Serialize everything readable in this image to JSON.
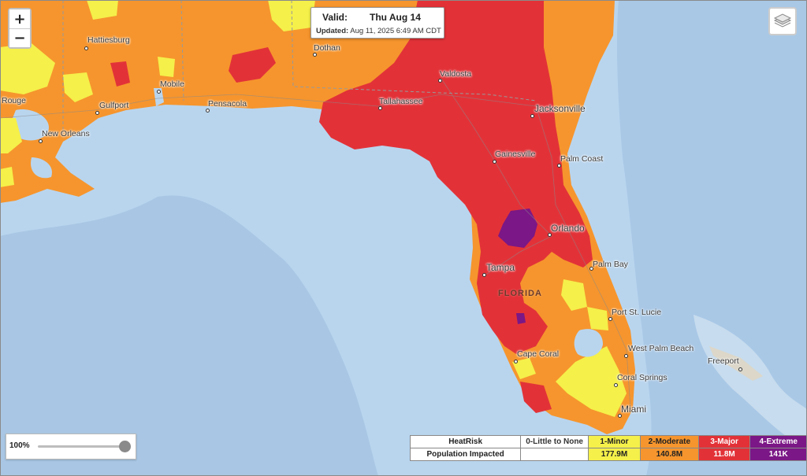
{
  "header": {
    "valid_label": "Valid:",
    "valid_value": "Thu  Aug 14",
    "updated_label": "Updated:",
    "updated_value": "Aug 11, 2025 6:49 AM CDT"
  },
  "zoom": {
    "in_label": "+",
    "out_label": "−"
  },
  "opacity": {
    "label": "100%",
    "value": 1.0
  },
  "legend": {
    "row1_label": "HeatRisk",
    "row2_label": "Population Impacted",
    "categories": [
      {
        "name": "0-Little to None",
        "population": "",
        "color": "#ffffff"
      },
      {
        "name": "1-Minor",
        "population": "177.9M",
        "color": "#f5f04a"
      },
      {
        "name": "2-Moderate",
        "population": "140.8M",
        "color": "#f6952d"
      },
      {
        "name": "3-Major",
        "population": "11.8M",
        "color": "#e23238"
      },
      {
        "name": "4-Extreme",
        "population": "141K",
        "color": "#7b1786"
      }
    ]
  },
  "map": {
    "state_label": "FLORIDA",
    "cities": [
      "Hattiesburg",
      "Dothan",
      "Mobile",
      "Rouge",
      "Gulfport",
      "Pensacola",
      "New Orleans",
      "Valdosta",
      "Tallahassee",
      "Jacksonville",
      "Gainesville",
      "Palm Coast",
      "Orlando",
      "Palm Bay",
      "Tampa",
      "Port St. Lucie",
      "West Palm Beach",
      "Cape Coral",
      "Coral Springs",
      "Miami",
      "Freeport"
    ]
  },
  "icons": {
    "layers": "layers-icon"
  }
}
